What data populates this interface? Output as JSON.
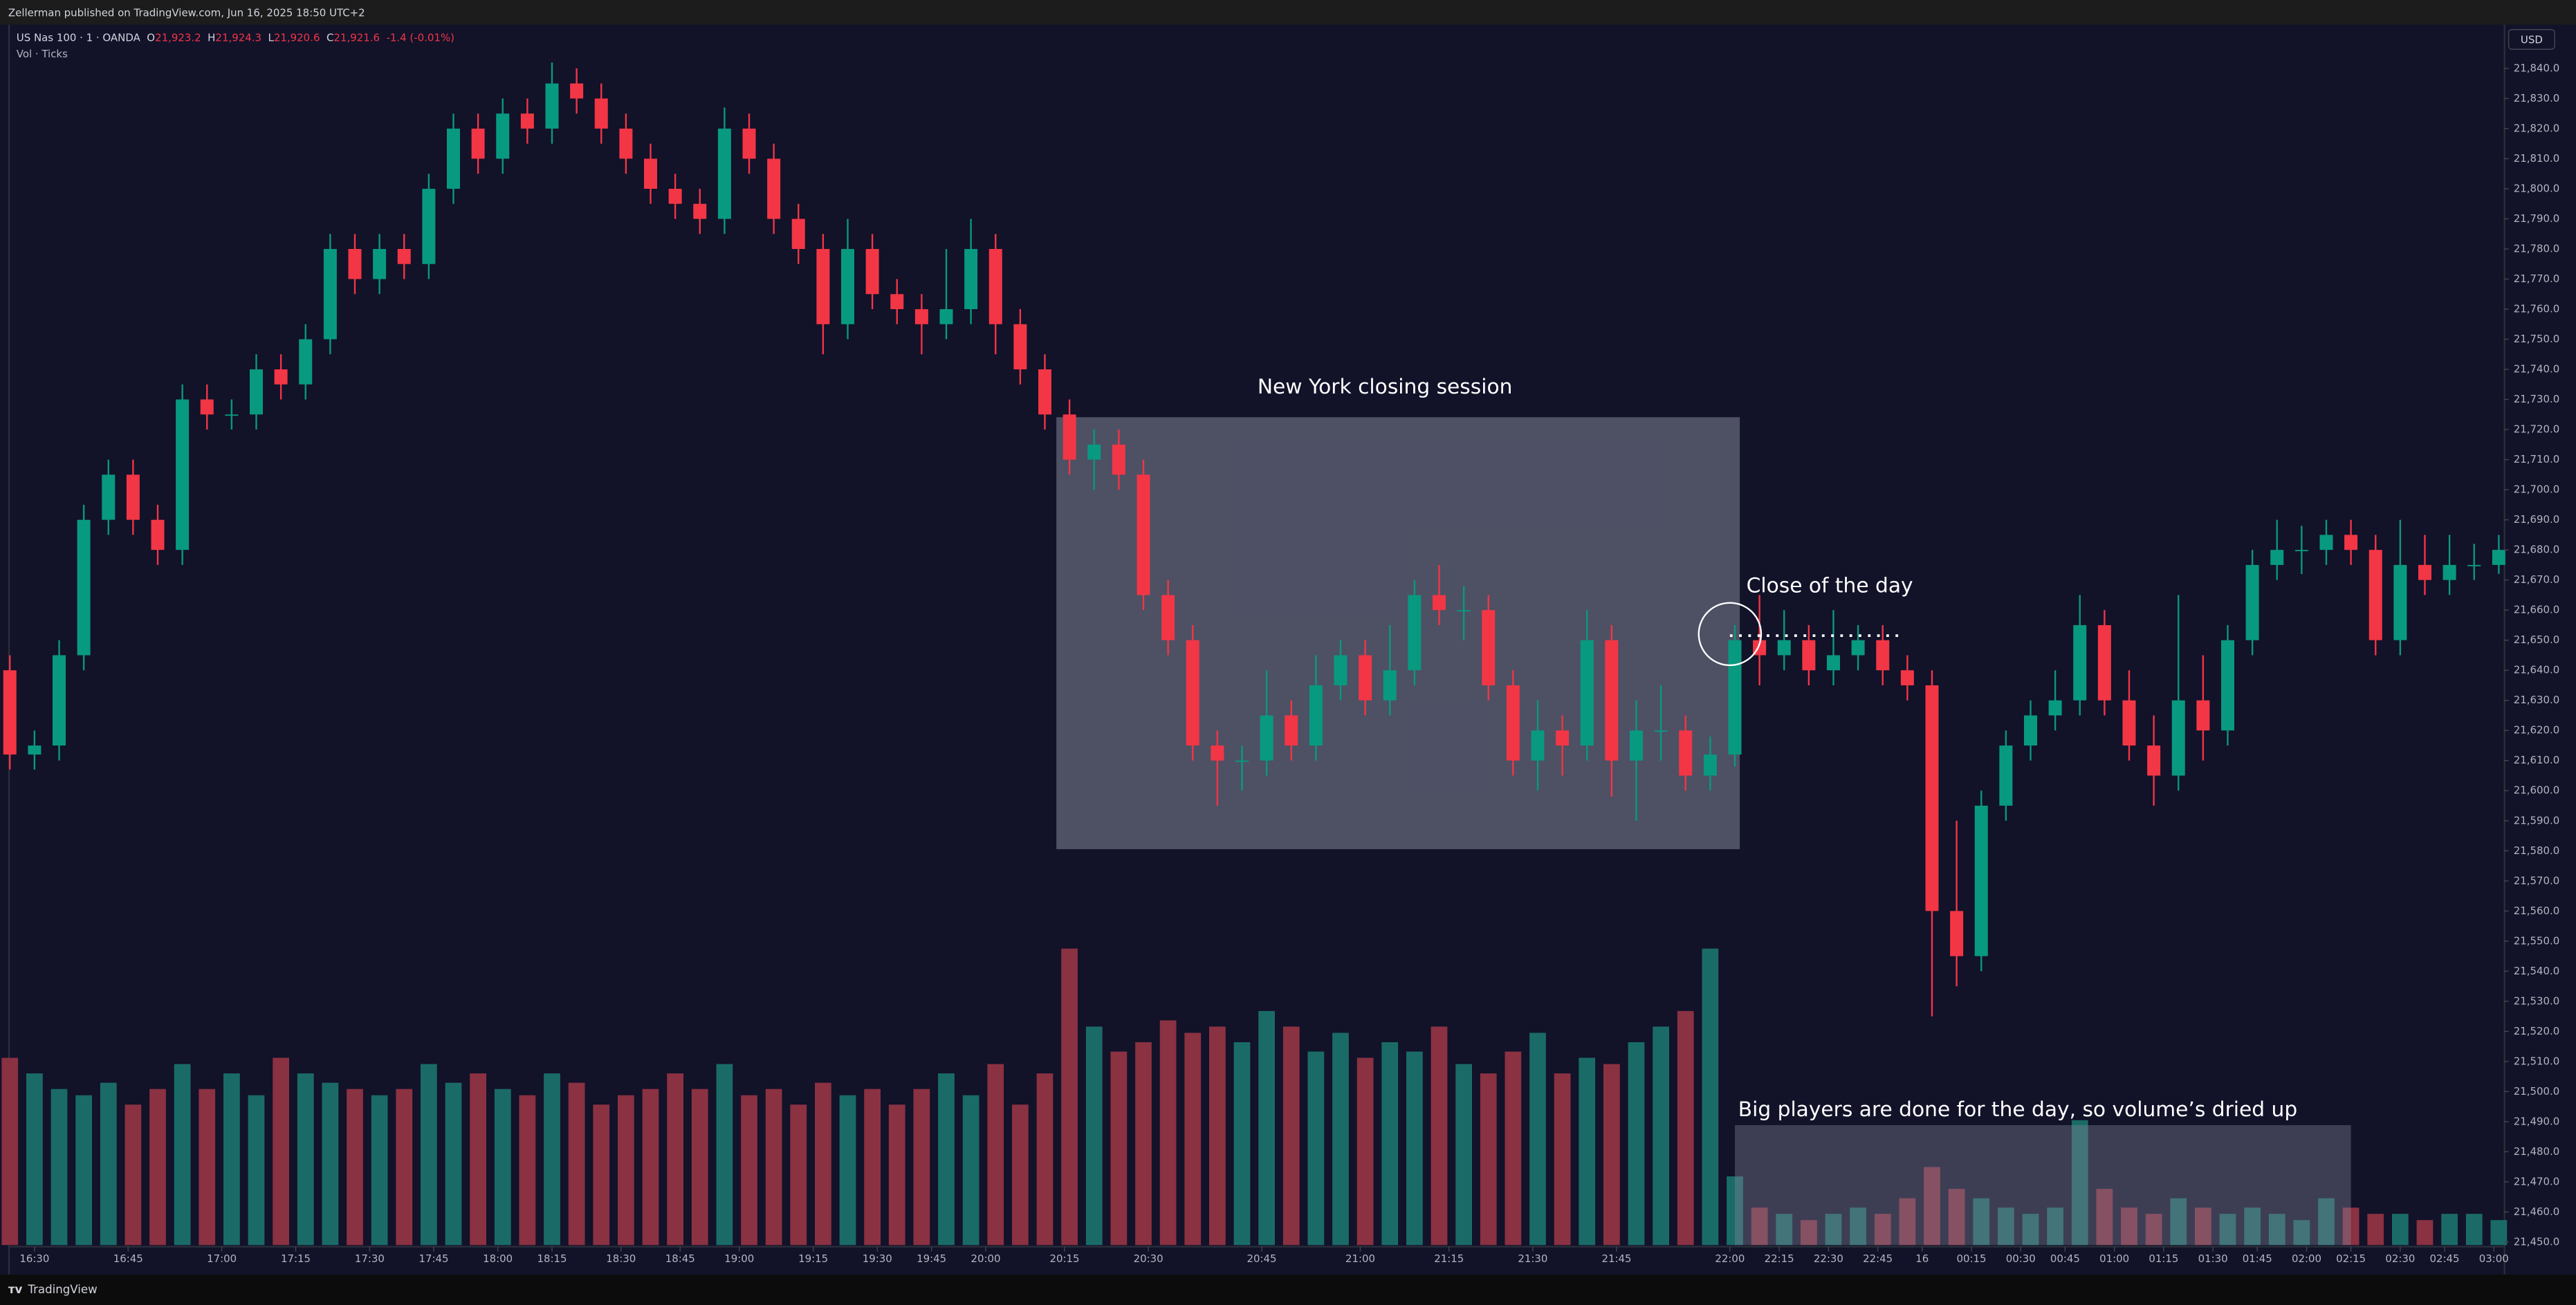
{
  "header": "Zellerman published on TradingView.com, Jun 16, 2025 18:50 UTC+2",
  "footer": "TradingView",
  "chart_data": {
    "type": "candlestick",
    "legend": {
      "symbol": "US Nas 100 · 1 · OANDA",
      "fields": [
        {
          "key": "O",
          "value": "21,923.2"
        },
        {
          "key": "H",
          "value": "21,924.3"
        },
        {
          "key": "L",
          "value": "21,920.6"
        },
        {
          "key": "C",
          "value": "21,921.6"
        }
      ],
      "change": "-1.4 (-0.01%)",
      "volume": "Vol · Ticks"
    },
    "currency": "USD",
    "annotations": [
      "New York closing session",
      "Close of the day",
      "Big players are done for the day, so volume’s dried up"
    ],
    "up_color": "#089981",
    "down_color": "#f23645",
    "volume_up_color": "#1a6b68",
    "volume_down_color": "#8a3142",
    "x": [
      0,
      5,
      10,
      15,
      20,
      25,
      30,
      35,
      40,
      45,
      50,
      55,
      60,
      65,
      70,
      75,
      80,
      85,
      90,
      95,
      100,
      105,
      110,
      115,
      120,
      125,
      130,
      135,
      140,
      145,
      150,
      155,
      160,
      165,
      170,
      175,
      180,
      185,
      190,
      195,
      200,
      205,
      210,
      215,
      220,
      225,
      230,
      235,
      240,
      245,
      250,
      255,
      260,
      265,
      270,
      275,
      280,
      285,
      290,
      295,
      300,
      305,
      310,
      315,
      320,
      325,
      330,
      335,
      340,
      345,
      350,
      355,
      360,
      365,
      370,
      375,
      380,
      385,
      390,
      395,
      400,
      405,
      410,
      415,
      420,
      425,
      430,
      435,
      440,
      445,
      450,
      455,
      460,
      465,
      470,
      475,
      480,
      485,
      490,
      495,
      500,
      505
    ],
    "open": [
      21640,
      21612,
      21615,
      21645,
      21690,
      21705,
      21690,
      21680,
      21730,
      21725,
      21725,
      21740,
      21735,
      21750,
      21780,
      21770,
      21780,
      21775,
      21800,
      21820,
      21810,
      21825,
      21820,
      21835,
      21830,
      21820,
      21810,
      21800,
      21795,
      21790,
      21820,
      21810,
      21790,
      21780,
      21755,
      21780,
      21765,
      21760,
      21755,
      21760,
      21780,
      21755,
      21740,
      21725,
      21710,
      21715,
      21705,
      21665,
      21650,
      21615,
      21610,
      21610,
      21625,
      21615,
      21635,
      21645,
      21630,
      21640,
      21665,
      21660,
      21660,
      21635,
      21610,
      21620,
      21615,
      21650,
      21610,
      21620,
      21620,
      21605,
      21612,
      21650,
      21645,
      21650,
      21640,
      21645,
      21650,
      21640,
      21635,
      21560,
      21545,
      21595,
      21615,
      21625,
      21630,
      21655,
      21630,
      21615,
      21605,
      21630,
      21620,
      21650,
      21675,
      21680,
      21680,
      21685,
      21680,
      21650,
      21675,
      21670,
      21675,
      21675
    ],
    "high": [
      21645,
      21620,
      21650,
      21695,
      21710,
      21710,
      21695,
      21735,
      21735,
      21730,
      21745,
      21745,
      21755,
      21785,
      21785,
      21785,
      21785,
      21805,
      21825,
      21825,
      21830,
      21830,
      21842,
      21840,
      21835,
      21825,
      21815,
      21805,
      21800,
      21827,
      21825,
      21815,
      21795,
      21785,
      21790,
      21785,
      21770,
      21765,
      21780,
      21790,
      21785,
      21760,
      21745,
      21730,
      21720,
      21720,
      21710,
      21670,
      21655,
      21620,
      21615,
      21640,
      21630,
      21645,
      21650,
      21650,
      21655,
      21670,
      21675,
      21668,
      21665,
      21640,
      21630,
      21625,
      21660,
      21655,
      21630,
      21635,
      21625,
      21618,
      21655,
      21665,
      21660,
      21655,
      21660,
      21655,
      21655,
      21645,
      21640,
      21590,
      21600,
      21620,
      21630,
      21640,
      21665,
      21660,
      21640,
      21625,
      21665,
      21645,
      21655,
      21680,
      21690,
      21688,
      21690,
      21690,
      21685,
      21690,
      21685,
      21685,
      21682,
      21685
    ],
    "low": [
      21607,
      21607,
      21610,
      21640,
      21685,
      21685,
      21675,
      21675,
      21720,
      21720,
      21720,
      21730,
      21730,
      21745,
      21765,
      21765,
      21770,
      21770,
      21795,
      21805,
      21805,
      21815,
      21815,
      21825,
      21815,
      21805,
      21795,
      21790,
      21785,
      21785,
      21805,
      21785,
      21775,
      21745,
      21750,
      21760,
      21755,
      21745,
      21750,
      21755,
      21745,
      21735,
      21720,
      21705,
      21700,
      21700,
      21660,
      21645,
      21610,
      21595,
      21600,
      21605,
      21610,
      21610,
      21630,
      21625,
      21625,
      21635,
      21655,
      21650,
      21630,
      21605,
      21600,
      21605,
      21610,
      21598,
      21590,
      21610,
      21600,
      21600,
      21608,
      21635,
      21640,
      21635,
      21635,
      21640,
      21635,
      21630,
      21525,
      21535,
      21540,
      21590,
      21610,
      21620,
      21625,
      21625,
      21610,
      21595,
      21600,
      21610,
      21615,
      21645,
      21670,
      21672,
      21675,
      21675,
      21645,
      21645,
      21665,
      21665,
      21670,
      21672
    ],
    "close": [
      21612,
      21615,
      21645,
      21690,
      21705,
      21690,
      21680,
      21730,
      21725,
      21725,
      21740,
      21735,
      21750,
      21780,
      21770,
      21780,
      21775,
      21800,
      21820,
      21810,
      21825,
      21820,
      21835,
      21830,
      21820,
      21810,
      21800,
      21795,
      21790,
      21820,
      21810,
      21790,
      21780,
      21755,
      21780,
      21765,
      21760,
      21755,
      21760,
      21780,
      21755,
      21740,
      21725,
      21710,
      21715,
      21705,
      21665,
      21650,
      21615,
      21610,
      21610,
      21625,
      21615,
      21635,
      21645,
      21630,
      21640,
      21665,
      21660,
      21660,
      21635,
      21610,
      21620,
      21615,
      21650,
      21610,
      21620,
      21620,
      21605,
      21612,
      21650,
      21645,
      21650,
      21640,
      21645,
      21650,
      21640,
      21635,
      21560,
      21545,
      21595,
      21615,
      21625,
      21630,
      21655,
      21630,
      21615,
      21605,
      21630,
      21620,
      21650,
      21675,
      21680,
      21680,
      21685,
      21680,
      21650,
      21675,
      21670,
      21675,
      21675,
      21680
    ],
    "volume": [
      60,
      55,
      50,
      48,
      52,
      45,
      50,
      58,
      50,
      55,
      48,
      60,
      55,
      52,
      50,
      48,
      50,
      58,
      52,
      55,
      50,
      48,
      55,
      52,
      45,
      48,
      50,
      55,
      50,
      58,
      48,
      50,
      45,
      52,
      48,
      50,
      45,
      50,
      55,
      48,
      58,
      45,
      55,
      95,
      70,
      62,
      65,
      72,
      68,
      70,
      65,
      75,
      70,
      62,
      68,
      60,
      65,
      62,
      70,
      58,
      55,
      62,
      68,
      55,
      60,
      58,
      65,
      70,
      75,
      95,
      22,
      12,
      10,
      8,
      10,
      12,
      10,
      15,
      25,
      18,
      15,
      12,
      10,
      12,
      40,
      18,
      12,
      10,
      15,
      12,
      10,
      12,
      10,
      8,
      15,
      12,
      10,
      10,
      8,
      10,
      10,
      8
    ],
    "volume_ylim": [
      0,
      100
    ],
    "xlim": [
      0,
      506
    ],
    "ylim": [
      21449,
      21854
    ],
    "xticks": [
      {
        "value": 5,
        "label": "16:30"
      },
      {
        "value": 24,
        "label": "16:45"
      },
      {
        "value": 43,
        "label": "17:00"
      },
      {
        "value": 58,
        "label": "17:15"
      },
      {
        "value": 73,
        "label": "17:30"
      },
      {
        "value": 86,
        "label": "17:45"
      },
      {
        "value": 99,
        "label": "18:00"
      },
      {
        "value": 110,
        "label": "18:15"
      },
      {
        "value": 124,
        "label": "18:30"
      },
      {
        "value": 136,
        "label": "18:45"
      },
      {
        "value": 148,
        "label": "19:00"
      },
      {
        "value": 163,
        "label": "19:15"
      },
      {
        "value": 176,
        "label": "19:30"
      },
      {
        "value": 187,
        "label": "19:45"
      },
      {
        "value": 198,
        "label": "20:00"
      },
      {
        "value": 214,
        "label": "20:15"
      },
      {
        "value": 231,
        "label": "20:30"
      },
      {
        "value": 254,
        "label": "20:45"
      },
      {
        "value": 274,
        "label": "21:00"
      },
      {
        "value": 292,
        "label": "21:15"
      },
      {
        "value": 309,
        "label": "21:30"
      },
      {
        "value": 326,
        "label": "21:45"
      },
      {
        "value": 349,
        "label": "22:00"
      },
      {
        "value": 359,
        "label": "22:15"
      },
      {
        "value": 369,
        "label": "22:30"
      },
      {
        "value": 379,
        "label": "22:45"
      },
      {
        "value": 388,
        "label": "16"
      },
      {
        "value": 398,
        "label": "00:15"
      },
      {
        "value": 408,
        "label": "00:30"
      },
      {
        "value": 417,
        "label": "00:45"
      },
      {
        "value": 427,
        "label": "01:00"
      },
      {
        "value": 437,
        "label": "01:15"
      },
      {
        "value": 447,
        "label": "01:30"
      },
      {
        "value": 456,
        "label": "01:45"
      },
      {
        "value": 466,
        "label": "02:00"
      },
      {
        "value": 475,
        "label": "02:15"
      },
      {
        "value": 485,
        "label": "02:30"
      },
      {
        "value": 494,
        "label": "02:45"
      },
      {
        "value": 504,
        "label": "03:00"
      }
    ],
    "yticks": [
      {
        "value": 21840,
        "label": "21,840.0"
      },
      {
        "value": 21830,
        "label": "21,830.0"
      },
      {
        "value": 21820,
        "label": "21,820.0"
      },
      {
        "value": 21810,
        "label": "21,810.0"
      },
      {
        "value": 21800,
        "label": "21,800.0"
      },
      {
        "value": 21790,
        "label": "21,790.0"
      },
      {
        "value": 21780,
        "label": "21,780.0"
      },
      {
        "value": 21770,
        "label": "21,770.0"
      },
      {
        "value": 21760,
        "label": "21,760.0"
      },
      {
        "value": 21750,
        "label": "21,750.0"
      },
      {
        "value": 21740,
        "label": "21,740.0"
      },
      {
        "value": 21730,
        "label": "21,730.0"
      },
      {
        "value": 21720,
        "label": "21,720.0"
      },
      {
        "value": 21710,
        "label": "21,710.0"
      },
      {
        "value": 21700,
        "label": "21,700.0"
      },
      {
        "value": 21690,
        "label": "21,690.0"
      },
      {
        "value": 21680,
        "label": "21,680.0"
      },
      {
        "value": 21670,
        "label": "21,670.0"
      },
      {
        "value": 21660,
        "label": "21,660.0"
      },
      {
        "value": 21650,
        "label": "21,650.0"
      },
      {
        "value": 21640,
        "label": "21,640.0"
      },
      {
        "value": 21630,
        "label": "21,630.0"
      },
      {
        "value": 21620,
        "label": "21,620.0"
      },
      {
        "value": 21610,
        "label": "21,610.0"
      },
      {
        "value": 21600,
        "label": "21,600.0"
      },
      {
        "value": 21590,
        "label": "21,590.0"
      },
      {
        "value": 21580,
        "label": "21,580.0"
      },
      {
        "value": 21570,
        "label": "21,570.0"
      },
      {
        "value": 21560,
        "label": "21,560.0"
      },
      {
        "value": 21550,
        "label": "21,550.0"
      },
      {
        "value": 21540,
        "label": "21,540.0"
      },
      {
        "value": 21530,
        "label": "21,530.0"
      },
      {
        "value": 21520,
        "label": "21,520.0"
      },
      {
        "value": 21510,
        "label": "21,510.0"
      },
      {
        "value": 21500,
        "label": "21,500.0"
      },
      {
        "value": 21490,
        "label": "21,490.0"
      },
      {
        "value": 21480,
        "label": "21,480.0"
      },
      {
        "value": 21470,
        "label": "21,470.0"
      },
      {
        "value": 21460,
        "label": "21,460.0"
      },
      {
        "value": 21450,
        "label": "21,450.0"
      }
    ]
  }
}
